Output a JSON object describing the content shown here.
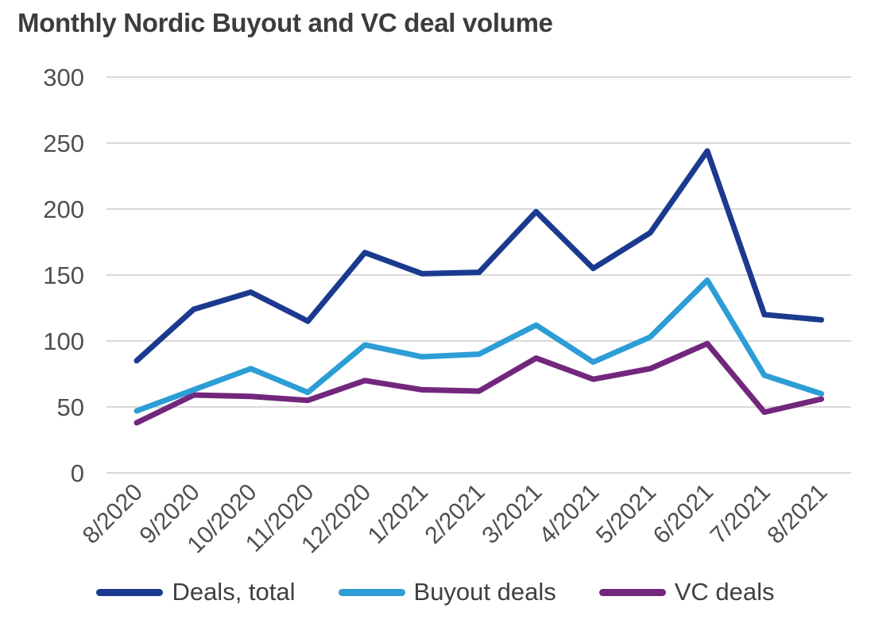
{
  "page": {
    "background_color": "#ffffff"
  },
  "chart_data": {
    "type": "line",
    "title": "Monthly Nordic Buyout and VC deal volume",
    "categories": [
      "8/2020",
      "9/2020",
      "10/2020",
      "11/2020",
      "12/2020",
      "1/2021",
      "2/2021",
      "3/2021",
      "4/2021",
      "5/2021",
      "6/2021",
      "7/2021",
      "8/2021"
    ],
    "series": [
      {
        "name": "Deals, total",
        "color": "#1b3a8f",
        "values": [
          85,
          124,
          137,
          115,
          167,
          151,
          152,
          198,
          155,
          182,
          244,
          120,
          116
        ]
      },
      {
        "name": "Buyout deals",
        "color": "#2d9dd6",
        "values": [
          47,
          63,
          79,
          61,
          97,
          88,
          90,
          112,
          84,
          103,
          146,
          74,
          60
        ]
      },
      {
        "name": "VC deals",
        "color": "#72277d",
        "values": [
          38,
          59,
          58,
          55,
          70,
          63,
          62,
          87,
          71,
          79,
          98,
          46,
          56
        ]
      }
    ],
    "xlabel": "",
    "ylabel": "",
    "ylim": [
      0,
      300
    ],
    "y_ticks": [
      0,
      50,
      100,
      150,
      200,
      250,
      300
    ],
    "grid": "horizontal",
    "legend_position": "bottom",
    "gridline_color": "#d9d9d9",
    "axis_text_color": "#4f4f4f",
    "title_color": "#3c3c3c"
  }
}
